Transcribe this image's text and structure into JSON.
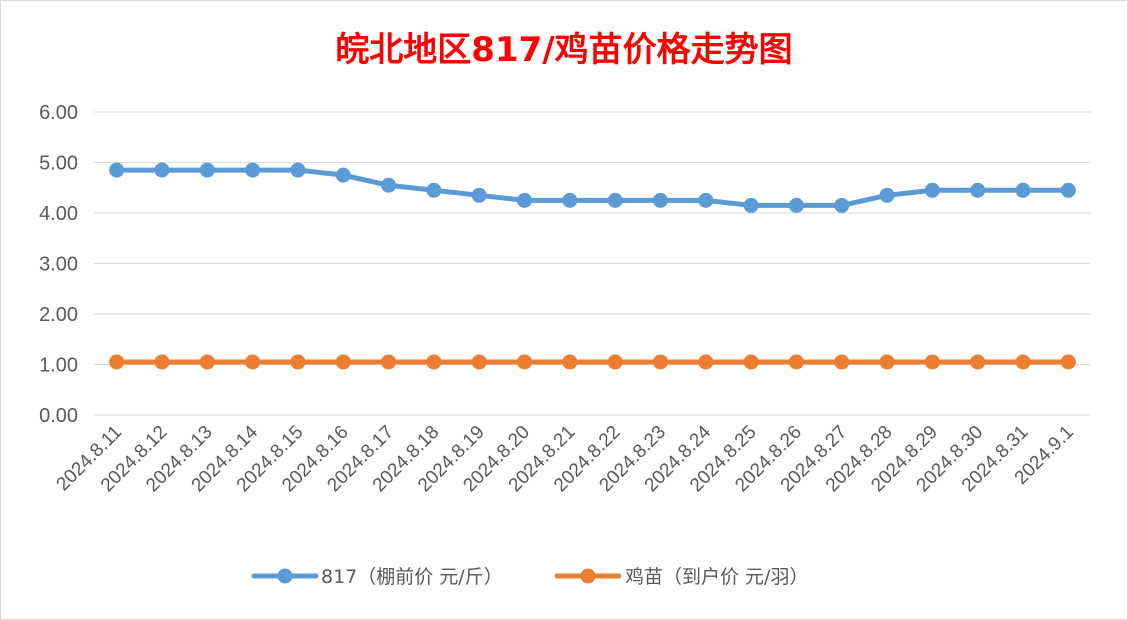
{
  "chart_data": {
    "type": "line",
    "title": "皖北地区817/鸡苗价格走势图",
    "xlabel": "",
    "ylabel": "",
    "categories": [
      "2024.8.11",
      "2024.8.12",
      "2024.8.13",
      "2024.8.14",
      "2024.8.15",
      "2024.8.16",
      "2024.8.17",
      "2024.8.18",
      "2024.8.19",
      "2024.8.20",
      "2024.8.21",
      "2024.8.22",
      "2024.8.23",
      "2024.8.24",
      "2024.8.25",
      "2024.8.26",
      "2024.8.27",
      "2024.8.28",
      "2024.8.29",
      "2024.8.30",
      "2024.8.31",
      "2024.9.1"
    ],
    "y_ticks": [
      "0.00",
      "1.00",
      "2.00",
      "3.00",
      "4.00",
      "5.00",
      "6.00"
    ],
    "ylim": [
      0,
      6
    ],
    "grid": true,
    "legend_position": "bottom",
    "series": [
      {
        "name": "817（棚前价 元/斤）",
        "color": "#5b9bd5",
        "values": [
          4.85,
          4.85,
          4.85,
          4.85,
          4.85,
          4.75,
          4.55,
          4.45,
          4.35,
          4.25,
          4.25,
          4.25,
          4.25,
          4.25,
          4.15,
          4.15,
          4.15,
          4.35,
          4.45,
          4.45,
          4.45,
          4.45
        ]
      },
      {
        "name": "鸡苗（到户价 元/羽）",
        "color": "#ed7d31",
        "values": [
          1.05,
          1.05,
          1.05,
          1.05,
          1.05,
          1.05,
          1.05,
          1.05,
          1.05,
          1.05,
          1.05,
          1.05,
          1.05,
          1.05,
          1.05,
          1.05,
          1.05,
          1.05,
          1.05,
          1.05,
          1.05,
          1.05
        ]
      }
    ]
  }
}
